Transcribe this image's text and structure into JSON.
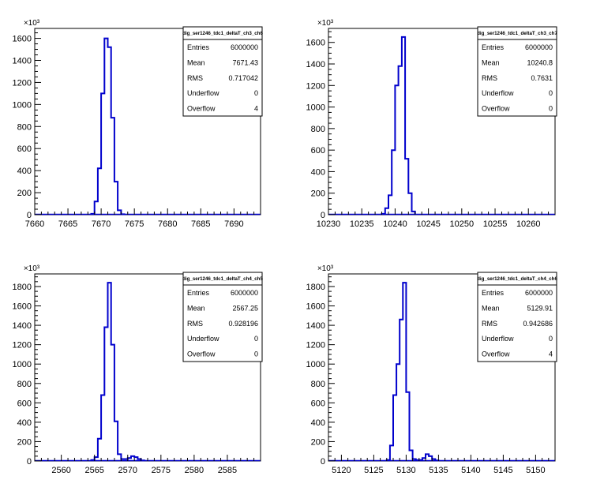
{
  "chart_data": [
    {
      "type": "histogram",
      "title": "dig_ser1246_tdc1_deltaT_ch3_ch6",
      "y_multiplier": "×10³",
      "xlim": [
        7660,
        7694
      ],
      "ylim": [
        0,
        1690
      ],
      "xticks": [
        7660,
        7665,
        7670,
        7675,
        7680,
        7685,
        7690
      ],
      "yticks": [
        0,
        200,
        400,
        600,
        800,
        1000,
        1200,
        1400,
        1600
      ],
      "bin_width": 0.5,
      "bins": [
        {
          "x": 7668.5,
          "y": 8
        },
        {
          "x": 7669.0,
          "y": 120
        },
        {
          "x": 7669.5,
          "y": 420
        },
        {
          "x": 7670.0,
          "y": 1100
        },
        {
          "x": 7670.5,
          "y": 1600
        },
        {
          "x": 7671.0,
          "y": 1520
        },
        {
          "x": 7671.5,
          "y": 880
        },
        {
          "x": 7672.0,
          "y": 300
        },
        {
          "x": 7672.5,
          "y": 40
        },
        {
          "x": 7673.0,
          "y": 4
        }
      ],
      "stats": [
        {
          "label": "Entries",
          "value": "6000000"
        },
        {
          "label": "Mean",
          "value": "7671.43"
        },
        {
          "label": "RMS",
          "value": "0.717042"
        },
        {
          "label": "Underflow",
          "value": "0"
        },
        {
          "label": "Overflow",
          "value": "4"
        }
      ]
    },
    {
      "type": "histogram",
      "title": "dig_ser1246_tdc1_deltaT_ch3_ch7",
      "y_multiplier": "×10³",
      "xlim": [
        10230,
        10264
      ],
      "ylim": [
        0,
        1730
      ],
      "xticks": [
        10230,
        10235,
        10240,
        10245,
        10250,
        10255,
        10260
      ],
      "yticks": [
        0,
        200,
        400,
        600,
        800,
        1000,
        1200,
        1400,
        1600
      ],
      "bin_width": 0.5,
      "bins": [
        {
          "x": 10238.0,
          "y": 8
        },
        {
          "x": 10238.5,
          "y": 60
        },
        {
          "x": 10239.0,
          "y": 180
        },
        {
          "x": 10239.5,
          "y": 600
        },
        {
          "x": 10240.0,
          "y": 1200
        },
        {
          "x": 10240.5,
          "y": 1380
        },
        {
          "x": 10241.0,
          "y": 1650
        },
        {
          "x": 10241.5,
          "y": 520
        },
        {
          "x": 10242.0,
          "y": 200
        },
        {
          "x": 10242.5,
          "y": 30
        }
      ],
      "stats": [
        {
          "label": "Entries",
          "value": "6000000"
        },
        {
          "label": "Mean",
          "value": "10240.8"
        },
        {
          "label": "RMS",
          "value": "0.7631"
        },
        {
          "label": "Underflow",
          "value": "0"
        },
        {
          "label": "Overflow",
          "value": "0"
        }
      ]
    },
    {
      "type": "histogram",
      "title": "dig_ser1246_tdc1_deltaT_ch4_ch5",
      "y_multiplier": "×10³",
      "xlim": [
        2556,
        2590
      ],
      "ylim": [
        0,
        1930
      ],
      "xticks": [
        2560,
        2565,
        2570,
        2575,
        2580,
        2585
      ],
      "yticks": [
        0,
        200,
        400,
        600,
        800,
        1000,
        1200,
        1400,
        1600,
        1800
      ],
      "bin_width": 0.5,
      "bins": [
        {
          "x": 2564.5,
          "y": 10
        },
        {
          "x": 2565.0,
          "y": 40
        },
        {
          "x": 2565.5,
          "y": 230
        },
        {
          "x": 2566.0,
          "y": 680
        },
        {
          "x": 2566.5,
          "y": 1380
        },
        {
          "x": 2567.0,
          "y": 1840
        },
        {
          "x": 2567.5,
          "y": 1200
        },
        {
          "x": 2568.0,
          "y": 410
        },
        {
          "x": 2568.5,
          "y": 70
        },
        {
          "x": 2569.0,
          "y": 20
        },
        {
          "x": 2569.5,
          "y": 20
        },
        {
          "x": 2570.0,
          "y": 30
        },
        {
          "x": 2570.5,
          "y": 50
        },
        {
          "x": 2571.0,
          "y": 40
        },
        {
          "x": 2571.5,
          "y": 20
        },
        {
          "x": 2572.0,
          "y": 6
        }
      ],
      "stats": [
        {
          "label": "Entries",
          "value": "6000000"
        },
        {
          "label": "Mean",
          "value": "2567.25"
        },
        {
          "label": "RMS",
          "value": "0.928196"
        },
        {
          "label": "Underflow",
          "value": "0"
        },
        {
          "label": "Overflow",
          "value": "0"
        }
      ]
    },
    {
      "type": "histogram",
      "title": "dig_ser1246_tdc1_deltaT_ch4_ch6",
      "y_multiplier": "×10³",
      "xlim": [
        5118,
        5153
      ],
      "ylim": [
        0,
        1930
      ],
      "xticks": [
        5120,
        5125,
        5130,
        5135,
        5140,
        5145,
        5150
      ],
      "yticks": [
        0,
        200,
        400,
        600,
        800,
        1000,
        1200,
        1400,
        1600,
        1800
      ],
      "bin_width": 0.5,
      "bins": [
        {
          "x": 5127.0,
          "y": 10
        },
        {
          "x": 5127.5,
          "y": 160
        },
        {
          "x": 5128.0,
          "y": 680
        },
        {
          "x": 5128.5,
          "y": 1000
        },
        {
          "x": 5129.0,
          "y": 1460
        },
        {
          "x": 5129.5,
          "y": 1840
        },
        {
          "x": 5130.0,
          "y": 710
        },
        {
          "x": 5130.5,
          "y": 110
        },
        {
          "x": 5131.0,
          "y": 20
        },
        {
          "x": 5131.5,
          "y": 10
        },
        {
          "x": 5132.0,
          "y": 10
        },
        {
          "x": 5132.5,
          "y": 30
        },
        {
          "x": 5133.0,
          "y": 70
        },
        {
          "x": 5133.5,
          "y": 50
        },
        {
          "x": 5134.0,
          "y": 20
        },
        {
          "x": 5134.5,
          "y": 6
        }
      ],
      "stats": [
        {
          "label": "Entries",
          "value": "6000000"
        },
        {
          "label": "Mean",
          "value": "5129.91"
        },
        {
          "label": "RMS",
          "value": "0.942686"
        },
        {
          "label": "Underflow",
          "value": "0"
        },
        {
          "label": "Overflow",
          "value": "4"
        }
      ]
    }
  ],
  "colors": {
    "histogram_line": "#0000cc",
    "axes": "#000000",
    "background": "#ffffff"
  }
}
